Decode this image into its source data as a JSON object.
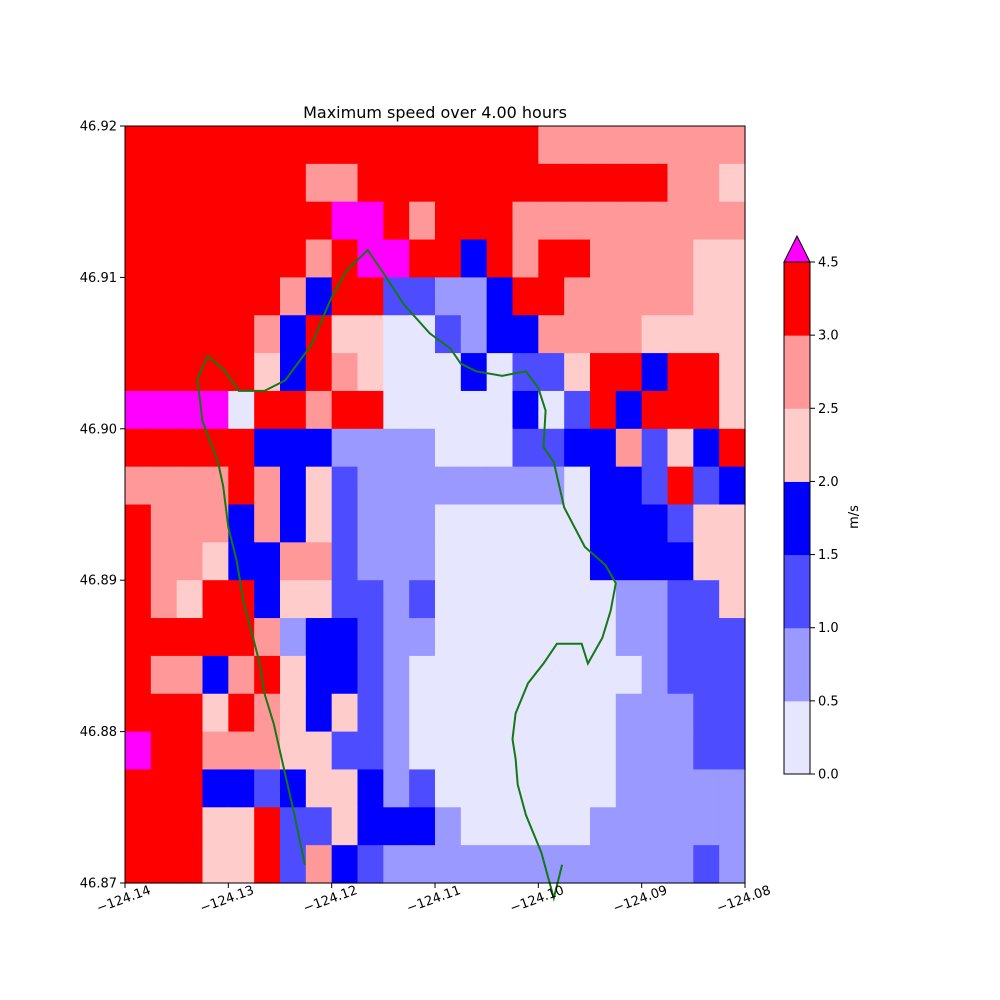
{
  "chart_data": {
    "type": "heatmap",
    "title": "Maximum speed over 4.00 hours",
    "xlim": [
      -124.14,
      -124.08
    ],
    "ylim": [
      46.87,
      46.92
    ],
    "xticks": [
      -124.14,
      -124.13,
      -124.12,
      -124.11,
      -124.1,
      -124.09,
      -124.08
    ],
    "xtick_labels": [
      "−124.14",
      "−124.13",
      "−124.12",
      "−124.11",
      "−124.10",
      "−124.09",
      "−124.08"
    ],
    "yticks": [
      46.87,
      46.88,
      46.89,
      46.9,
      46.91,
      46.92
    ],
    "ytick_labels": [
      "46.87",
      "46.88",
      "46.89",
      "46.90",
      "46.91",
      "46.92"
    ],
    "grid": false,
    "colorbar": {
      "label": "m/s",
      "ticks": [
        "0.0",
        "0.5",
        "1.0",
        "1.5",
        "2.0",
        "2.5",
        "3.0",
        "4.5"
      ],
      "bins": [
        [
          0.0,
          0.5
        ],
        [
          0.5,
          1.0
        ],
        [
          1.0,
          1.5
        ],
        [
          1.5,
          2.0
        ],
        [
          2.0,
          2.5
        ],
        [
          2.5,
          3.0
        ],
        [
          3.0,
          4.5
        ]
      ],
      "colors": [
        "#e6e6ff",
        "#9999ff",
        "#4d4dff",
        "#0000ff",
        "#ffcccc",
        "#ff9999",
        "#ff0000"
      ],
      "over_color": "#ff00ff",
      "extend": "max"
    },
    "land_color": "#b3ffb3",
    "grid_description": "24 columns x 20 rows; rows listed north to south; digit = speed class (0-6 = colorbar bins, 7 = over 4.5 m/s, L = land)",
    "grid_rows": [
      "666666666666666655555555",
      "666666655666666666666554",
      "666666667765666555555555",
      "666666656776636566555544",
      "666666536622113665555544",
      "666665364400213355554444",
      "666664365400030224663664",
      "777706656600000302636664",
      "666663331111000223352436",
      "555565342111111110332623",
      "655535342111000000333244",
      "655433552111000000333344",
      "654663442212000000011224",
      "666665133211000000011222",
      "655356433210000000001222",
      "666465434210000000011122",
      "766555442210000000011122",
      "666332344312000000011111",
      "666446224333100000111111",
      "666446253211111111111121"
    ],
    "coastline_segments": [
      [
        [
          -124.1226,
          46.8712
        ],
        [
          -124.1236,
          46.8745
        ],
        [
          -124.1246,
          46.8775
        ],
        [
          -124.1256,
          46.8805
        ],
        [
          -124.1265,
          46.8825
        ],
        [
          -124.127,
          46.8846
        ],
        [
          -124.1276,
          46.8862
        ],
        [
          -124.1285,
          46.8885
        ],
        [
          -124.1292,
          46.8913
        ],
        [
          -124.13,
          46.8935
        ],
        [
          -124.1305,
          46.8962
        ],
        [
          -124.131,
          46.8978
        ],
        [
          -124.1325,
          46.9005
        ],
        [
          -124.133,
          46.9033
        ],
        [
          -124.132,
          46.9048
        ],
        [
          -124.1304,
          46.9039
        ],
        [
          -124.129,
          46.9025
        ],
        [
          -124.1265,
          46.9025
        ],
        [
          -124.1245,
          46.9032
        ],
        [
          -124.122,
          46.9055
        ],
        [
          -124.12,
          46.9087
        ],
        [
          -124.1185,
          46.9105
        ],
        [
          -124.1165,
          46.9118
        ],
        [
          -124.115,
          46.9103
        ],
        [
          -124.113,
          46.9082
        ],
        [
          -124.1105,
          46.9063
        ],
        [
          -124.1085,
          46.9053
        ],
        [
          -124.1075,
          46.9043
        ],
        [
          -124.106,
          46.9038
        ],
        [
          -124.1035,
          46.9035
        ],
        [
          -124.1012,
          46.9038
        ],
        [
          -124.1,
          46.9027
        ],
        [
          -124.0993,
          46.9012
        ],
        [
          -124.0995,
          46.8988
        ],
        [
          -124.0985,
          46.8978
        ],
        [
          -124.0975,
          46.8948
        ],
        [
          -124.0955,
          46.8922
        ],
        [
          -124.0935,
          46.891
        ],
        [
          -124.0925,
          46.8898
        ],
        [
          -124.093,
          46.888
        ],
        [
          -124.0938,
          46.8862
        ],
        [
          -124.0952,
          46.8845
        ],
        [
          -124.0958,
          46.8858
        ],
        [
          -124.0982,
          46.8858
        ],
        [
          -124.0995,
          46.8845
        ],
        [
          -124.101,
          46.8832
        ],
        [
          -124.1022,
          46.8812
        ],
        [
          -124.1025,
          46.8795
        ],
        [
          -124.1022,
          46.8782
        ],
        [
          -124.102,
          46.8765
        ],
        [
          -124.1012,
          46.8745
        ],
        [
          -124.0997,
          46.872
        ],
        [
          -124.0985,
          46.869
        ],
        [
          -124.0977,
          46.8712
        ]
      ]
    ]
  }
}
